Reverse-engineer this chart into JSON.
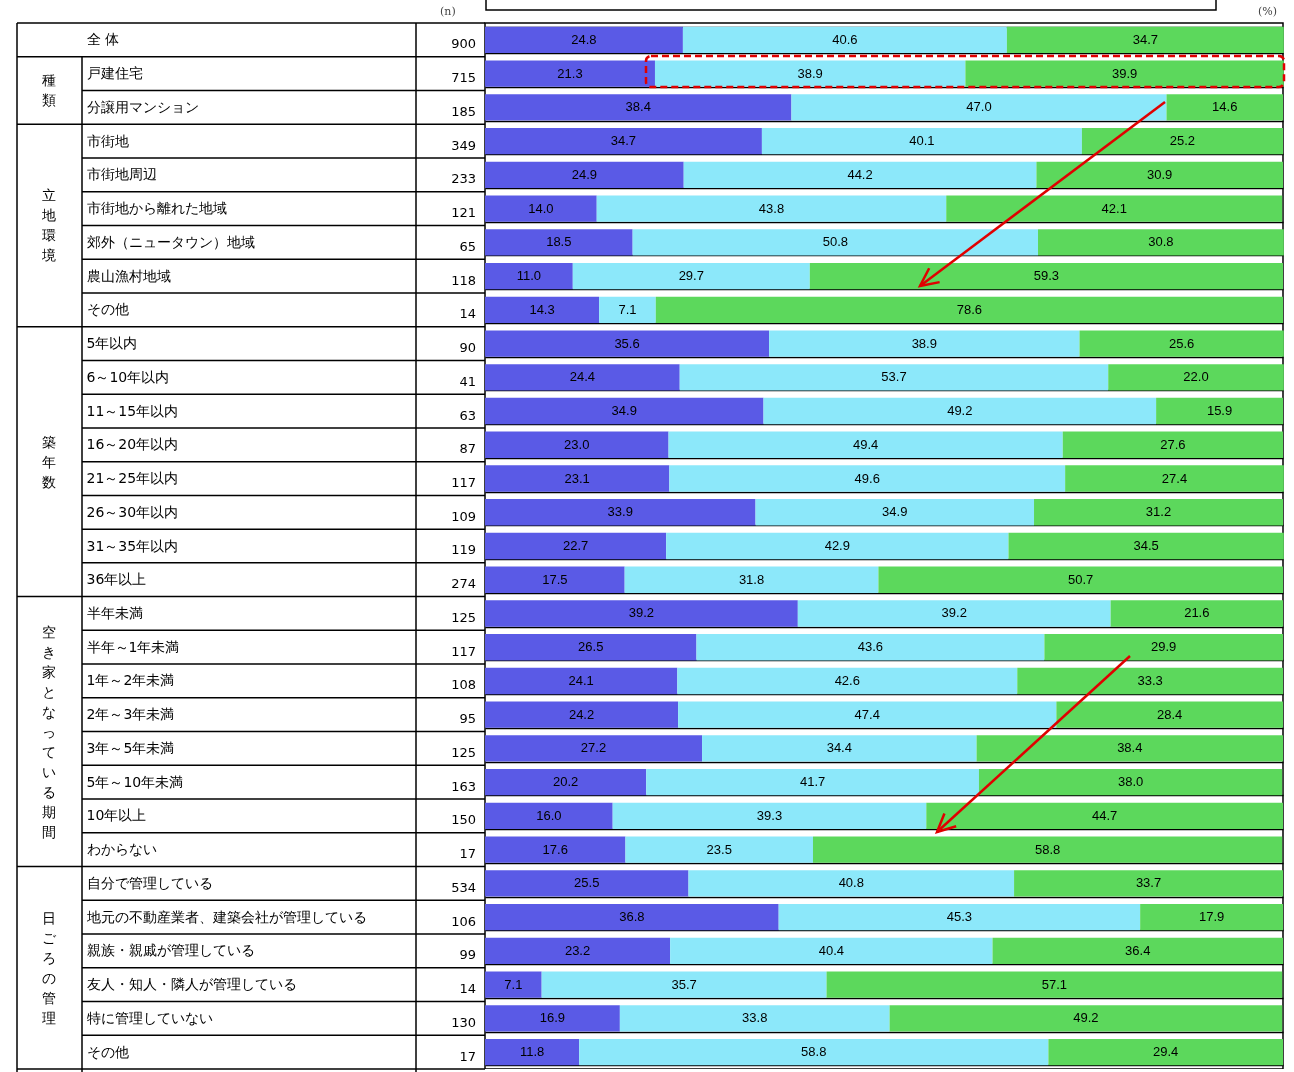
{
  "chart_data": {
    "type": "bar",
    "orientation": "horizontal",
    "stacked": true,
    "categories": [
      "全 体",
      "戸建住宅",
      "分譲用マンション",
      "市街地",
      "市街地周辺",
      "市街地から離れた地域",
      "郊外（ニュータウン）地域",
      "農山漁村地域",
      "その他",
      "5年以内",
      "6～10年以内",
      "11～15年以内",
      "16～20年以内",
      "21～25年以内",
      "26～30年以内",
      "31～35年以内",
      "36年以上",
      "半年未満",
      "半年～1年未満",
      "1年～2年未満",
      "2年～3年未満",
      "3年～5年未満",
      "5年～10年未満",
      "10年以上",
      "わからない",
      "自分で管理している",
      "地元の不動産業者、建築会社が管理している",
      "親族・親戚が管理している",
      "友人・知人・隣人が管理している",
      "特に管理していない",
      "その他"
    ],
    "series": [
      {
        "color": "#5a5ae6",
        "values": [
          24.8,
          21.3,
          38.4,
          34.7,
          24.9,
          14.0,
          18.5,
          11.0,
          14.3,
          35.6,
          24.4,
          34.9,
          23.0,
          23.1,
          33.9,
          22.7,
          17.5,
          39.2,
          26.5,
          24.1,
          24.2,
          27.2,
          20.2,
          16.0,
          17.6,
          25.5,
          36.8,
          23.2,
          7.1,
          16.9,
          11.8
        ],
        "value_labels": [
          "24.8",
          "21.3",
          "38.4",
          "34.7",
          "24.9",
          "14.0",
          "18.5",
          "11.0",
          "14.3",
          "35.6",
          "24.4",
          "34.9",
          "23.0",
          "23.1",
          "33.9",
          "22.7",
          "17.5",
          "39.2",
          "26.5",
          "24.1",
          "24.2",
          "27.2",
          "20.2",
          "16.0",
          "17.6",
          "25.5",
          "36.8",
          "23.2",
          "7.1",
          "16.9",
          "11.8"
        ]
      },
      {
        "color": "#8ce8fa",
        "values": [
          40.6,
          38.9,
          47.0,
          40.1,
          44.2,
          43.8,
          50.8,
          29.7,
          7.1,
          38.9,
          53.7,
          49.2,
          49.4,
          49.6,
          34.9,
          42.9,
          31.8,
          39.2,
          43.6,
          42.6,
          47.4,
          34.4,
          41.7,
          39.3,
          23.5,
          40.8,
          45.3,
          40.4,
          35.7,
          33.8,
          58.8
        ],
        "value_labels": [
          "40.6",
          "38.9",
          "47.0",
          "40.1",
          "44.2",
          "43.8",
          "50.8",
          "29.7",
          "7.1",
          "38.9",
          "53.7",
          "49.2",
          "49.4",
          "49.6",
          "34.9",
          "42.9",
          "31.8",
          "39.2",
          "43.6",
          "42.6",
          "47.4",
          "34.4",
          "41.7",
          "39.3",
          "23.5",
          "40.8",
          "45.3",
          "40.4",
          "35.7",
          "33.8",
          "58.8"
        ]
      },
      {
        "color": "#5cd85c",
        "values": [
          34.7,
          39.9,
          14.6,
          25.2,
          30.9,
          42.1,
          30.8,
          59.3,
          78.6,
          25.6,
          22.0,
          15.9,
          27.6,
          27.4,
          31.2,
          34.5,
          50.7,
          21.6,
          29.9,
          33.3,
          28.4,
          38.4,
          38.0,
          44.7,
          58.8,
          33.7,
          17.9,
          36.4,
          57.1,
          49.2,
          29.4
        ],
        "value_labels": [
          "34.7",
          "39.9",
          "14.6",
          "25.2",
          "30.9",
          "42.1",
          "30.8",
          "59.3",
          "78.6",
          "25.6",
          "22.0",
          "15.9",
          "27.6",
          "27.4",
          "31.2",
          "34.5",
          "50.7",
          "21.6",
          "29.9",
          "33.3",
          "28.4",
          "38.4",
          "38.0",
          "44.7",
          "58.8",
          "33.7",
          "17.9",
          "36.4",
          "57.1",
          "49.2",
          "29.4"
        ]
      }
    ],
    "xlim": [
      0,
      100
    ],
    "tick_labels": "y",
    "grid": "y",
    "annotations": [
      "(n)",
      "(%)",
      "900",
      "715",
      "185",
      "349",
      "233",
      "121",
      "65",
      "118",
      "14",
      "90",
      "41",
      "63",
      "87",
      "117",
      "109",
      "119",
      "274",
      "125",
      "117",
      "108",
      "95",
      "125",
      "163",
      "150",
      "17",
      "534",
      "106",
      "99",
      "14",
      "130",
      "17",
      "種類",
      "立地環境",
      "築年数",
      "空き家となっている期間",
      "日ごろの管理"
    ]
  }
}
